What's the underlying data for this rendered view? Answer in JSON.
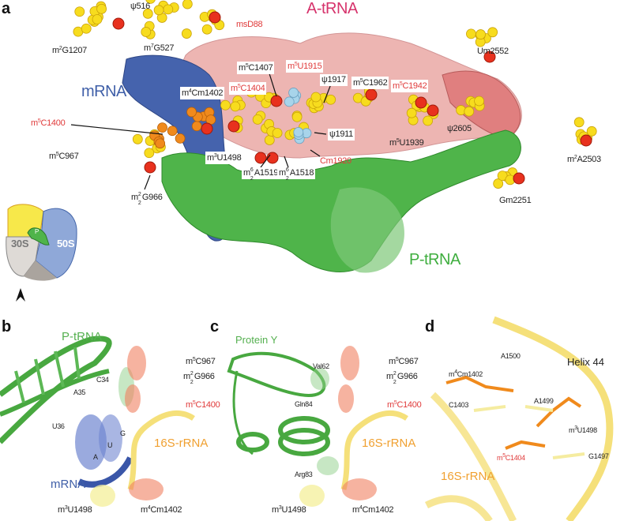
{
  "panels": {
    "a": "a",
    "b": "b",
    "c": "c",
    "d": "d"
  },
  "colors": {
    "a_trna": "#d6336c",
    "mrna": "#3f5fa8",
    "p_trna": "#3fae3f",
    "rrna_16s": "#f0a030",
    "modification_red": "#e03a3a",
    "nucleotide_yellow": "#f7dc1e",
    "nucleotide_orange": "#f08a1c"
  },
  "panel_a": {
    "titles": {
      "a_trna": "A-tRNA",
      "mrna": "mRNA",
      "p_trna": "P-tRNA"
    },
    "inset": {
      "small_subunit": "30S",
      "large_subunit": "50S",
      "p_site": "P"
    },
    "labels": [
      {
        "id": "psi516",
        "pre": "ψ516",
        "sup": "",
        "sub": "",
        "post": "",
        "red": false,
        "boxed": false
      },
      {
        "id": "msD88",
        "pre": "msD88",
        "sup": "",
        "sub": "",
        "post": "",
        "red": true,
        "boxed": false
      },
      {
        "id": "m2G1207",
        "pre": "m",
        "sup": "2",
        "sub": "",
        "post": "G1207",
        "red": false,
        "boxed": false
      },
      {
        "id": "m7G527",
        "pre": "m",
        "sup": "7",
        "sub": "",
        "post": "G527",
        "red": false,
        "boxed": false
      },
      {
        "id": "m5C1407",
        "pre": "m",
        "sup": "5",
        "sub": "",
        "post": "C1407",
        "red": false,
        "boxed": true
      },
      {
        "id": "m5U1915",
        "pre": "m",
        "sup": "5",
        "sub": "",
        "post": "U1915",
        "red": true,
        "boxed": true
      },
      {
        "id": "Um2552",
        "pre": "Um2552",
        "sup": "",
        "sub": "",
        "post": "",
        "red": false,
        "boxed": false
      },
      {
        "id": "m4Cm1402",
        "pre": "m",
        "sup": "4",
        "sub": "",
        "post": "Cm1402",
        "red": false,
        "boxed": true
      },
      {
        "id": "m5C1404",
        "pre": "m",
        "sup": "5",
        "sub": "",
        "post": "C1404",
        "red": true,
        "boxed": true
      },
      {
        "id": "psi1917",
        "pre": "ψ1917",
        "sup": "",
        "sub": "",
        "post": "",
        "red": false,
        "boxed": true
      },
      {
        "id": "m5C1962",
        "pre": "m",
        "sup": "5",
        "sub": "",
        "post": "C1962",
        "red": false,
        "boxed": true
      },
      {
        "id": "m5C1942",
        "pre": "m",
        "sup": "5",
        "sub": "",
        "post": "C1942",
        "red": true,
        "boxed": true
      },
      {
        "id": "psi2605",
        "pre": "ψ2605",
        "sup": "",
        "sub": "",
        "post": "",
        "red": false,
        "boxed": false
      },
      {
        "id": "psi1911",
        "pre": "ψ1911",
        "sup": "",
        "sub": "",
        "post": "",
        "red": false,
        "boxed": true
      },
      {
        "id": "m5U1939",
        "pre": "m",
        "sup": "5",
        "sub": "",
        "post": "U1939",
        "red": false,
        "boxed": false
      },
      {
        "id": "m2A2503",
        "pre": "m",
        "sup": "2",
        "sub": "",
        "post": "A2503",
        "red": false,
        "boxed": false
      },
      {
        "id": "m5C1400",
        "pre": "m",
        "sup": "5",
        "sub": "",
        "post": "C1400",
        "red": true,
        "boxed": false
      },
      {
        "id": "m5C967",
        "pre": "m",
        "sup": "5",
        "sub": "",
        "post": "C967",
        "red": false,
        "boxed": false
      },
      {
        "id": "m3U1498",
        "pre": "m",
        "sup": "3",
        "sub": "",
        "post": "U1498",
        "red": false,
        "boxed": true
      },
      {
        "id": "m62A1519",
        "pre": "m",
        "sup": "6",
        "sub": "2",
        "post": "A1519",
        "red": false,
        "boxed": true
      },
      {
        "id": "m62A1518",
        "pre": "m",
        "sup": "6",
        "sub": "2",
        "post": "A1518",
        "red": false,
        "boxed": true
      },
      {
        "id": "Cm1920",
        "pre": "Cm1920",
        "sup": "",
        "sub": "",
        "post": "",
        "red": true,
        "boxed": false
      },
      {
        "id": "m22G966",
        "pre": "m",
        "sup": "2",
        "sub": "2",
        "post": "G966",
        "red": false,
        "boxed": false
      },
      {
        "id": "Gm2251",
        "pre": "Gm2251",
        "sup": "",
        "sub": "",
        "post": "",
        "red": false,
        "boxed": false
      }
    ]
  },
  "panel_b": {
    "titles": {
      "p_trna": "P-tRNA",
      "rrna": "16S-rRNA",
      "mrna": "mRNA"
    },
    "labels": [
      {
        "id": "m5C967",
        "pre": "m",
        "sup": "5",
        "sub": "",
        "post": "C967",
        "red": false,
        "small": false
      },
      {
        "id": "m22G966",
        "pre": "m",
        "sup": "2",
        "sub": "2",
        "post": "G966",
        "red": false,
        "small": false
      },
      {
        "id": "m5C1400",
        "pre": "m",
        "sup": "5",
        "sub": "",
        "post": "C1400",
        "red": true,
        "small": false
      },
      {
        "id": "C34",
        "pre": "C34",
        "sup": "",
        "sub": "",
        "post": "",
        "red": false,
        "small": true
      },
      {
        "id": "A35",
        "pre": "A35",
        "sup": "",
        "sub": "",
        "post": "",
        "red": false,
        "small": true
      },
      {
        "id": "U36",
        "pre": "U36",
        "sup": "",
        "sub": "",
        "post": "",
        "red": false,
        "small": true
      },
      {
        "id": "G",
        "pre": "G",
        "sup": "",
        "sub": "",
        "post": "",
        "red": false,
        "small": true
      },
      {
        "id": "U",
        "pre": "U",
        "sup": "",
        "sub": "",
        "post": "",
        "red": false,
        "small": true
      },
      {
        "id": "A",
        "pre": "A",
        "sup": "",
        "sub": "",
        "post": "",
        "red": false,
        "small": true
      },
      {
        "id": "m3U1498",
        "pre": "m",
        "sup": "3",
        "sub": "",
        "post": "U1498",
        "red": false,
        "small": false
      },
      {
        "id": "m4Cm1402",
        "pre": "m",
        "sup": "4",
        "sub": "",
        "post": "Cm1402",
        "red": false,
        "small": false
      }
    ]
  },
  "panel_c": {
    "titles": {
      "protein": "Protein Y",
      "rrna": "16S-rRNA"
    },
    "labels": [
      {
        "id": "Val62",
        "pre": "Val62",
        "sup": "",
        "sub": "",
        "post": "",
        "red": false,
        "small": true
      },
      {
        "id": "m5C967",
        "pre": "m",
        "sup": "5",
        "sub": "",
        "post": "C967",
        "red": false,
        "small": false
      },
      {
        "id": "m22G966",
        "pre": "m",
        "sup": "2",
        "sub": "2",
        "post": "G966",
        "red": false,
        "small": false
      },
      {
        "id": "Gln84",
        "pre": "Gln84",
        "sup": "",
        "sub": "",
        "post": "",
        "red": false,
        "small": true
      },
      {
        "id": "m5C1400",
        "pre": "m",
        "sup": "5",
        "sub": "",
        "post": "C1400",
        "red": true,
        "small": false
      },
      {
        "id": "Arg83",
        "pre": "Arg83",
        "sup": "",
        "sub": "",
        "post": "",
        "red": false,
        "small": true
      },
      {
        "id": "m3U1498",
        "pre": "m",
        "sup": "3",
        "sub": "",
        "post": "U1498",
        "red": false,
        "small": false
      },
      {
        "id": "m4Cm1402",
        "pre": "m",
        "sup": "4",
        "sub": "",
        "post": "Cm1402",
        "red": false,
        "small": false
      }
    ]
  },
  "panel_d": {
    "titles": {
      "helix": "Helix 44",
      "rrna": "16S-rRNA"
    },
    "labels": [
      {
        "id": "A1500",
        "pre": "A1500",
        "sup": "",
        "sub": "",
        "post": "",
        "red": false,
        "small": true
      },
      {
        "id": "m4Cm1402",
        "pre": "m",
        "sup": "4",
        "sub": "",
        "post": "Cm1402",
        "red": false,
        "small": true
      },
      {
        "id": "A1499",
        "pre": "A1499",
        "sup": "",
        "sub": "",
        "post": "",
        "red": false,
        "small": true
      },
      {
        "id": "C1403",
        "pre": "C1403",
        "sup": "",
        "sub": "",
        "post": "",
        "red": false,
        "small": true
      },
      {
        "id": "m3U1498",
        "pre": "m",
        "sup": "3",
        "sub": "",
        "post": "U1498",
        "red": false,
        "small": true
      },
      {
        "id": "m5C1404",
        "pre": "m",
        "sup": "5",
        "sub": "",
        "post": "C1404",
        "red": true,
        "small": true
      },
      {
        "id": "G1497",
        "pre": "G1497",
        "sup": "",
        "sub": "",
        "post": "",
        "red": false,
        "small": true
      }
    ]
  }
}
